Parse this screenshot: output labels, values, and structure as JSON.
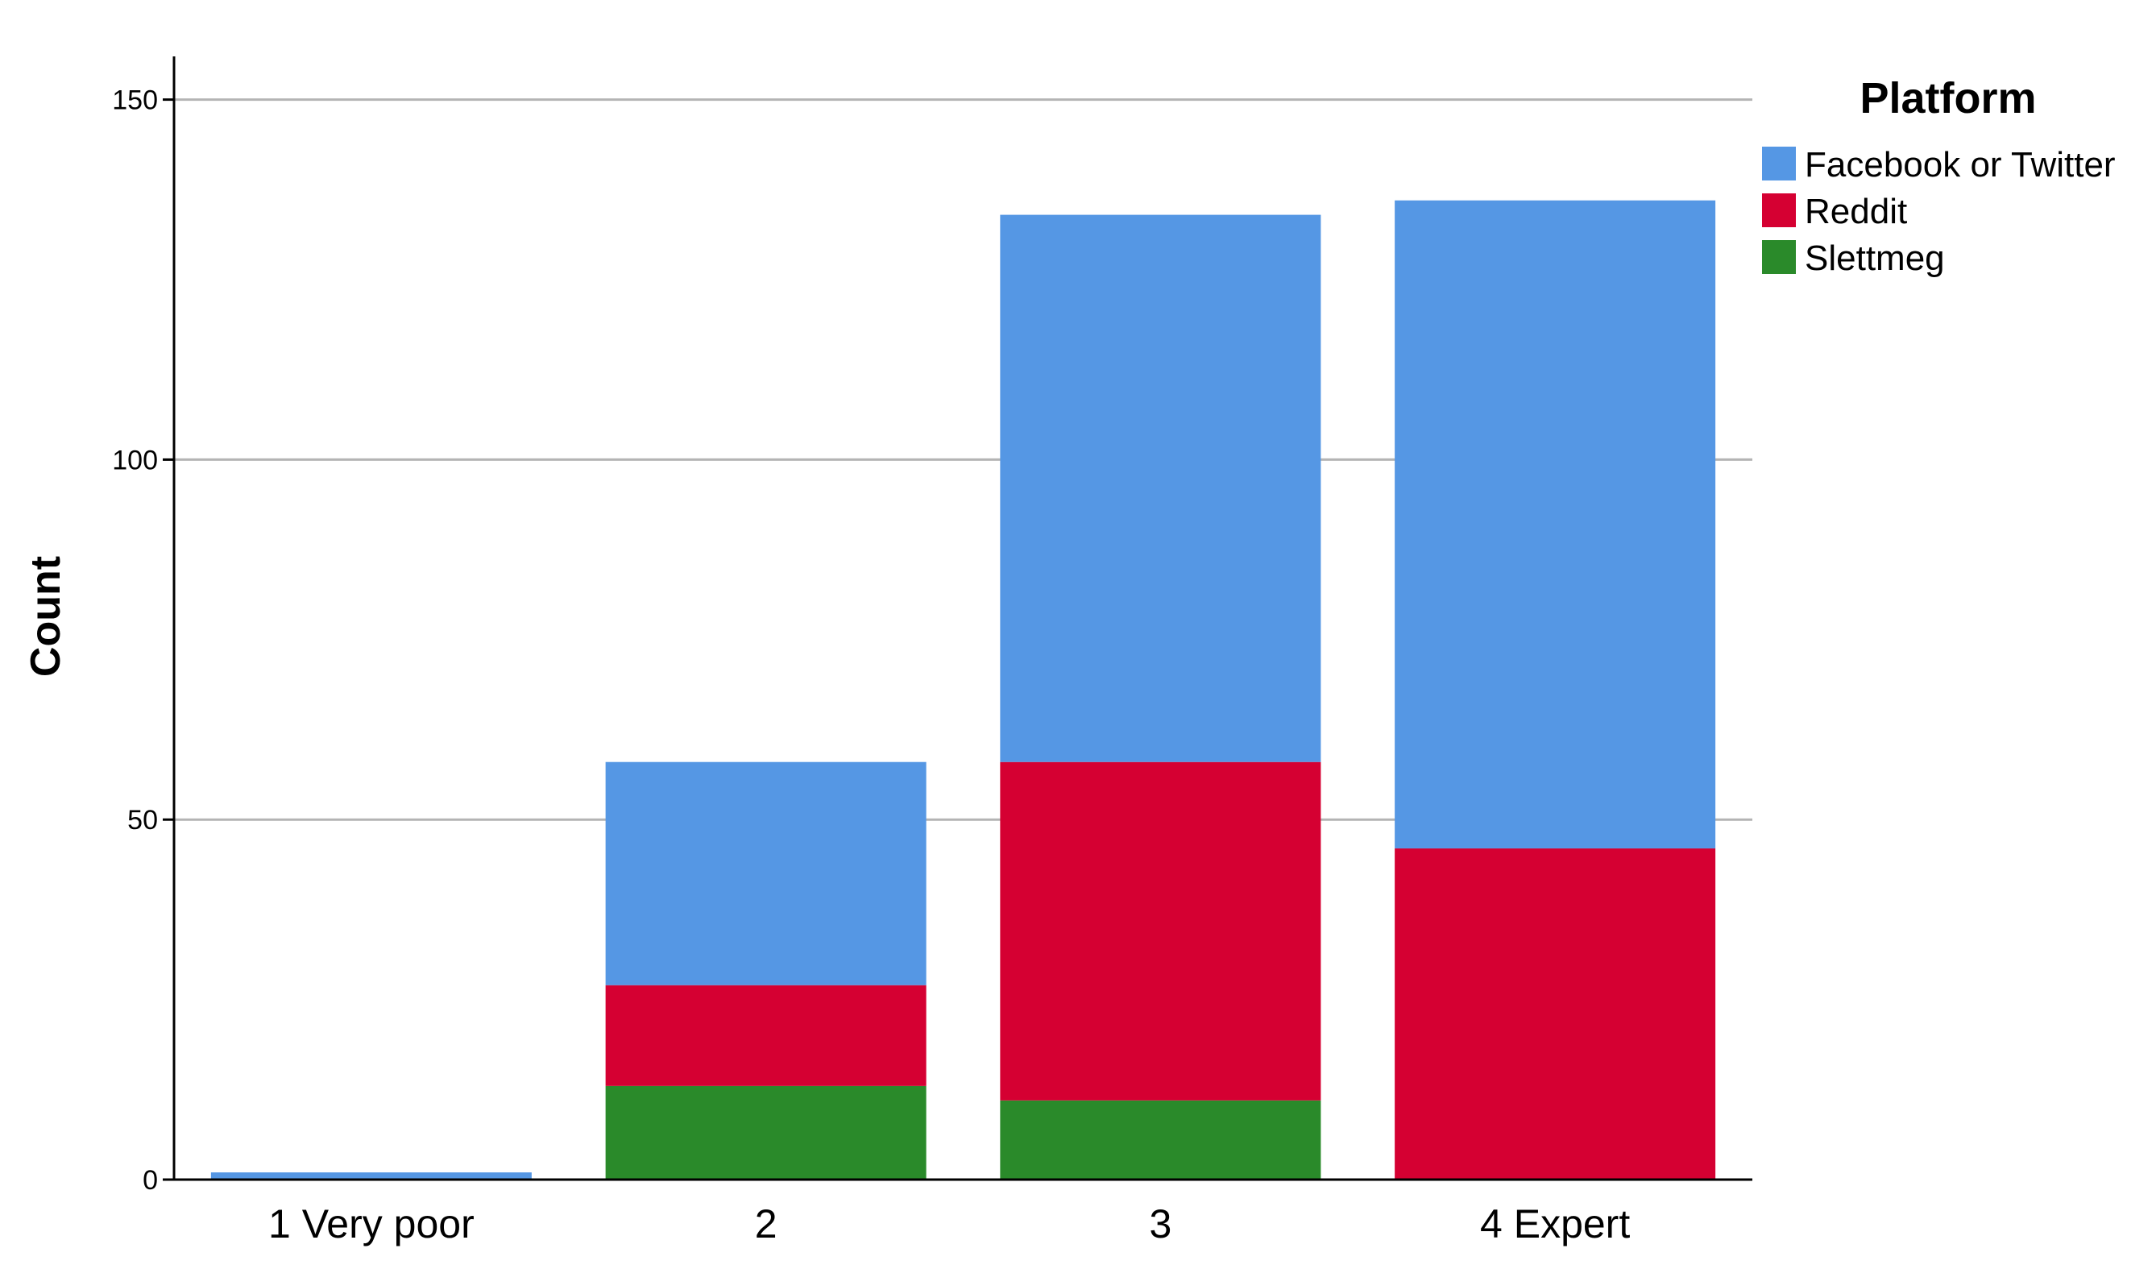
{
  "chart_data": {
    "type": "bar",
    "stacked": true,
    "categories": [
      "1 Very poor",
      "2",
      "3",
      "4 Expert"
    ],
    "series": [
      {
        "name": "Slettmeg",
        "color": "#2a8a2a",
        "values": [
          0,
          13,
          11,
          0
        ]
      },
      {
        "name": "Reddit",
        "color": "#d50032",
        "values": [
          0,
          14,
          47,
          46
        ]
      },
      {
        "name": "Facebook or Twitter",
        "color": "#5597e4",
        "values": [
          1,
          31,
          76,
          90
        ]
      }
    ],
    "legend_order": [
      "Facebook or Twitter",
      "Reddit",
      "Slettmeg"
    ],
    "title": "",
    "xlabel": "",
    "ylabel": "Count",
    "ylim": [
      0,
      156
    ],
    "yticks": [
      0,
      50,
      100,
      150
    ],
    "grid": true,
    "legend": {
      "title": "Platform",
      "position": "top-right"
    }
  },
  "colors": {
    "gridline": "#b4b4b4",
    "axis": "#000000"
  }
}
